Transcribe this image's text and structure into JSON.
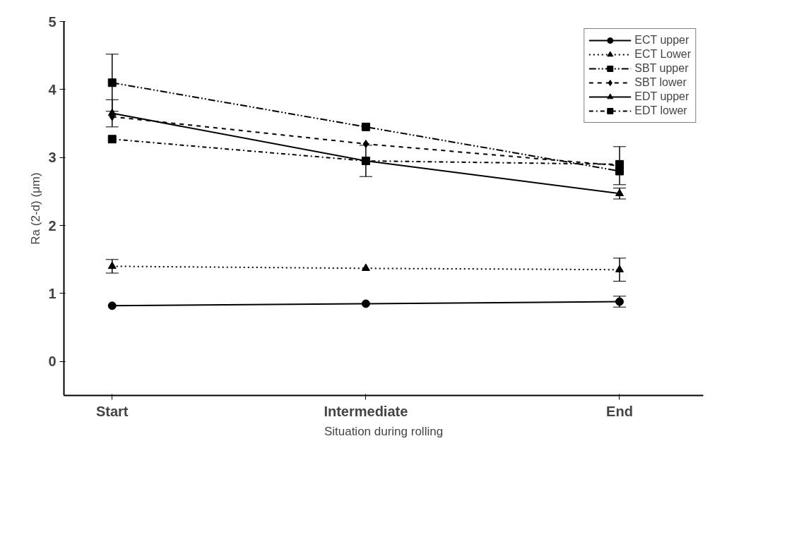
{
  "chart_data": {
    "type": "line",
    "xlabel": "Situation during rolling",
    "ylabel": "Ra (2-d) (μm)",
    "categories": [
      "Start",
      "Intermediate",
      "End"
    ],
    "ylim": [
      -0.5,
      5
    ],
    "yticks": [
      0,
      1,
      2,
      3,
      4,
      5
    ],
    "grid": false,
    "legend": "top right",
    "series": [
      {
        "name": "ECT upper",
        "color": "#000000",
        "marker": "circle",
        "line_style": "solid",
        "values": [
          0.82,
          0.85,
          0.88
        ],
        "errors": [
          null,
          null,
          0.08
        ]
      },
      {
        "name": "ECT Lower",
        "color": "#000000",
        "marker": "triangle",
        "line_style": "dotted",
        "values": [
          1.4,
          1.37,
          1.35
        ],
        "errors": [
          0.1,
          null,
          0.17
        ]
      },
      {
        "name": "SBT upper",
        "color": "#000000",
        "marker": "square",
        "line_style": "dashdotdot",
        "values": [
          4.1,
          3.45,
          2.8
        ],
        "errors": [
          0.42,
          null,
          null
        ]
      },
      {
        "name": "SBT lower",
        "color": "#000000",
        "marker": "diamond",
        "line_style": "dashed",
        "values": [
          3.6,
          3.2,
          2.88
        ],
        "errors": [
          null,
          null,
          0.28
        ]
      },
      {
        "name": "EDT upper",
        "color": "#000000",
        "marker": "triangle",
        "line_style": "solid",
        "values": [
          3.65,
          2.95,
          2.47
        ],
        "errors": [
          0.2,
          null,
          0.08
        ]
      },
      {
        "name": "EDT lower",
        "color": "#000000",
        "marker": "square",
        "line_style": "dashdot",
        "values": [
          3.27,
          2.95,
          2.9
        ],
        "errors": [
          null,
          0.23,
          null
        ]
      }
    ]
  }
}
